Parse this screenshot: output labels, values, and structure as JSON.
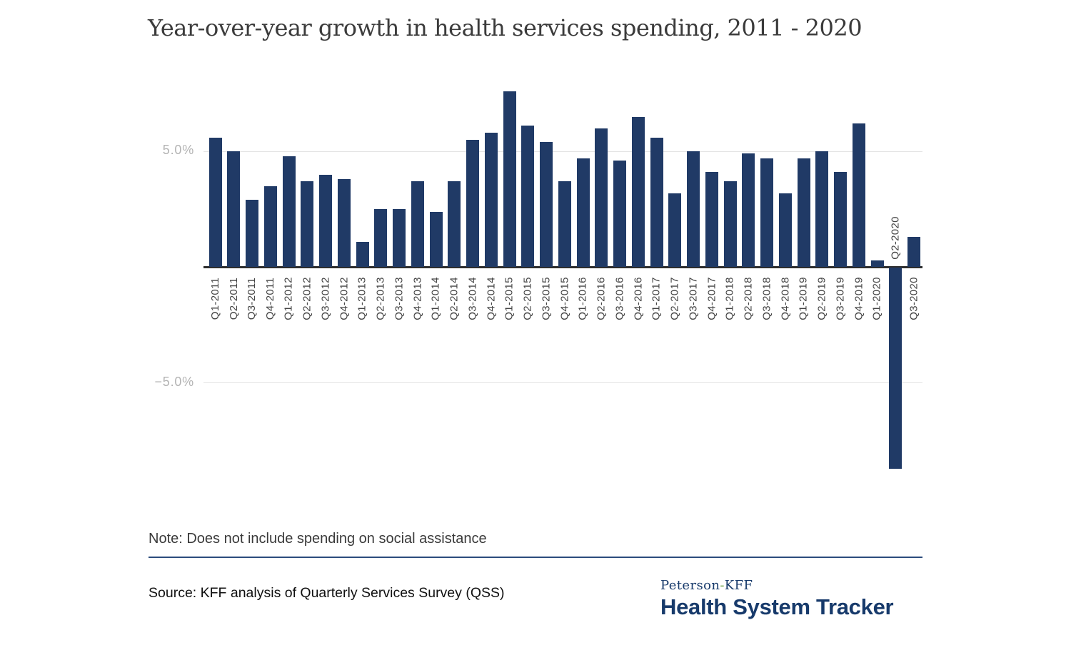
{
  "title": "Year-over-year growth in health services spending, 2011 - 2020",
  "chart_data": {
    "type": "bar",
    "title": "Year-over-year growth in health services spending, 2011 - 2020",
    "unit": "%",
    "categories": [
      "Q1-2011",
      "Q2-2011",
      "Q3-2011",
      "Q4-2011",
      "Q1-2012",
      "Q2-2012",
      "Q3-2012",
      "Q4-2012",
      "Q1-2013",
      "Q2-2013",
      "Q3-2013",
      "Q4-2013",
      "Q1-2014",
      "Q2-2014",
      "Q3-2014",
      "Q4-2014",
      "Q1-2015",
      "Q2-2015",
      "Q3-2015",
      "Q4-2015",
      "Q1-2016",
      "Q2-2016",
      "Q3-2016",
      "Q4-2016",
      "Q1-2017",
      "Q2-2017",
      "Q3-2017",
      "Q4-2017",
      "Q1-2018",
      "Q2-2018",
      "Q3-2018",
      "Q4-2018",
      "Q1-2019",
      "Q2-2019",
      "Q3-2019",
      "Q4-2019",
      "Q1-2020",
      "Q2-2020",
      "Q3-2020"
    ],
    "values": [
      5.6,
      5.0,
      2.9,
      3.5,
      4.8,
      3.7,
      4.0,
      3.8,
      1.1,
      2.5,
      2.5,
      3.7,
      2.4,
      3.7,
      5.5,
      5.8,
      7.6,
      6.1,
      5.4,
      3.7,
      4.7,
      6.0,
      4.6,
      6.5,
      5.6,
      3.2,
      5.0,
      4.1,
      3.7,
      4.9,
      4.7,
      3.2,
      4.7,
      5.0,
      4.1,
      6.2,
      0.3,
      -8.7,
      1.3
    ],
    "yticks": [
      {
        "value": 5.0,
        "label": "5.0%"
      },
      {
        "value": -5.0,
        "label": "−5.0%"
      }
    ],
    "ylim": [
      -9.3,
      8.5
    ],
    "grid": "horizontal",
    "legend": "none",
    "bar_color": "#203a66",
    "negative_label_above_axis": "Q2-2020"
  },
  "note": "Note: Does not include spending on social assistance",
  "source": "Source: KFF analysis of Quarterly Services Survey (QSS)",
  "logo": {
    "line1": {
      "prefix": "Peterson",
      "hyphen": "-",
      "suffix": "KFF"
    },
    "line2": "Health System Tracker",
    "navy": "#173a6b",
    "hyphen_green": "#6ca046"
  },
  "colors": {
    "bar": "#203a66",
    "axis_line": "#2e2e2e",
    "gridline": "#e3e3e3",
    "y_tick_text": "#b3b3b3",
    "x_tick_text": "#454545",
    "divider": "#2b4b7c"
  }
}
